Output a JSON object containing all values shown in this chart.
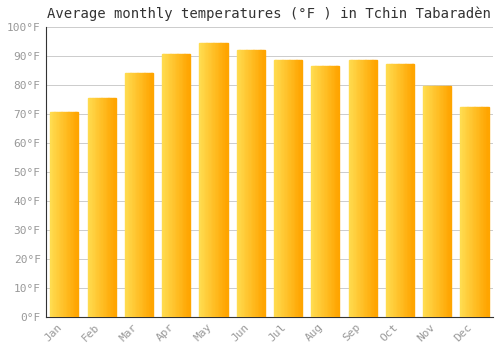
{
  "title": "Average monthly temperatures (°F ) in Tchin Tabaradèn",
  "months": [
    "Jan",
    "Feb",
    "Mar",
    "Apr",
    "May",
    "Jun",
    "Jul",
    "Aug",
    "Sep",
    "Oct",
    "Nov",
    "Dec"
  ],
  "values": [
    70.5,
    75.5,
    84,
    90.5,
    94.5,
    92,
    88.5,
    86.5,
    88.5,
    87,
    79.5,
    72.5
  ],
  "bar_color_left": "#FFD966",
  "bar_color_right": "#FFA500",
  "bar_color_mid": "#FFB830",
  "background_color": "#ffffff",
  "grid_color": "#cccccc",
  "ylim": [
    0,
    100
  ],
  "yticks": [
    0,
    10,
    20,
    30,
    40,
    50,
    60,
    70,
    80,
    90,
    100
  ],
  "ytick_labels": [
    "0°F",
    "10°F",
    "20°F",
    "30°F",
    "40°F",
    "50°F",
    "60°F",
    "70°F",
    "80°F",
    "90°F",
    "100°F"
  ],
  "title_fontsize": 10,
  "tick_fontsize": 8,
  "tick_color": "#999999",
  "bar_width": 0.75,
  "n_gradient_steps": 20
}
